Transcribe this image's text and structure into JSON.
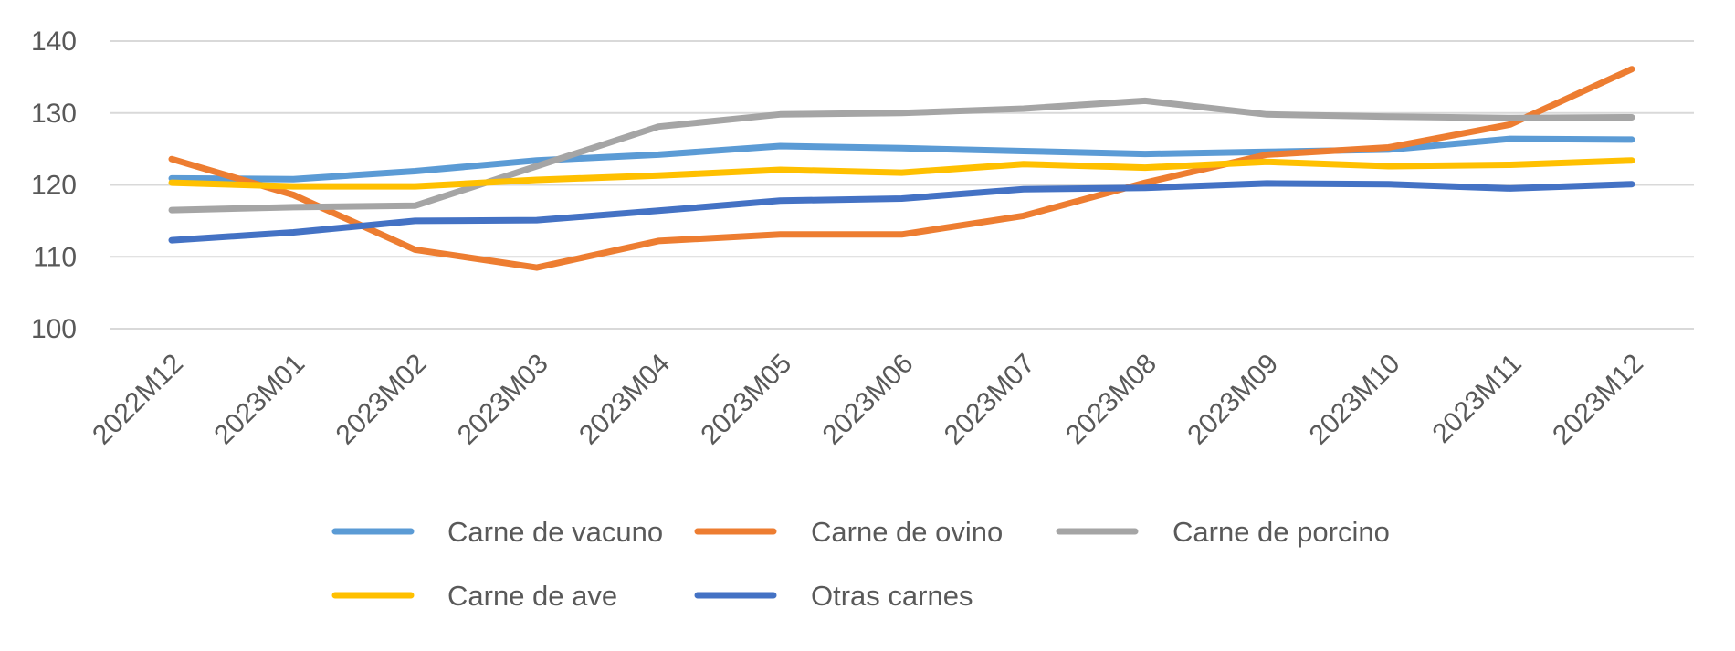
{
  "chart_data": {
    "type": "line",
    "title": "",
    "xlabel": "",
    "ylabel": "",
    "ylim": [
      100,
      140
    ],
    "yticks": [
      100,
      110,
      120,
      130,
      140
    ],
    "grid": true,
    "legend_position": "bottom",
    "categories": [
      "2022M12",
      "2023M01",
      "2023M02",
      "2023M03",
      "2023M04",
      "2023M05",
      "2023M06",
      "2023M07",
      "2023M08",
      "2023M09",
      "2023M10",
      "2023M11",
      "2023M12"
    ],
    "series": [
      {
        "name": "Carne de vacuno",
        "color": "#5b9bd5",
        "values": [
          120.9,
          120.8,
          121.9,
          123.4,
          124.2,
          125.4,
          125.1,
          124.7,
          124.3,
          124.6,
          124.9,
          126.4,
          126.3
        ]
      },
      {
        "name": "Carne de ovino",
        "color": "#ed7d31",
        "values": [
          123.6,
          118.6,
          111.0,
          108.5,
          112.2,
          113.1,
          113.1,
          115.7,
          120.3,
          124.2,
          125.2,
          128.4,
          136.1
        ]
      },
      {
        "name": "Carne de porcino",
        "color": "#a5a5a5",
        "values": [
          116.5,
          116.9,
          117.1,
          122.6,
          128.1,
          129.8,
          130.0,
          130.6,
          131.7,
          129.8,
          129.5,
          129.3,
          129.4
        ]
      },
      {
        "name": "Carne de ave",
        "color": "#ffc000",
        "values": [
          120.3,
          119.8,
          119.8,
          120.7,
          121.3,
          122.1,
          121.7,
          122.9,
          122.4,
          123.2,
          122.6,
          122.8,
          123.4
        ]
      },
      {
        "name": "Otras carnes",
        "color": "#4472c4",
        "values": [
          112.3,
          113.4,
          115.0,
          115.1,
          116.4,
          117.8,
          118.1,
          119.4,
          119.6,
          120.2,
          120.1,
          119.5,
          120.1
        ]
      }
    ]
  }
}
